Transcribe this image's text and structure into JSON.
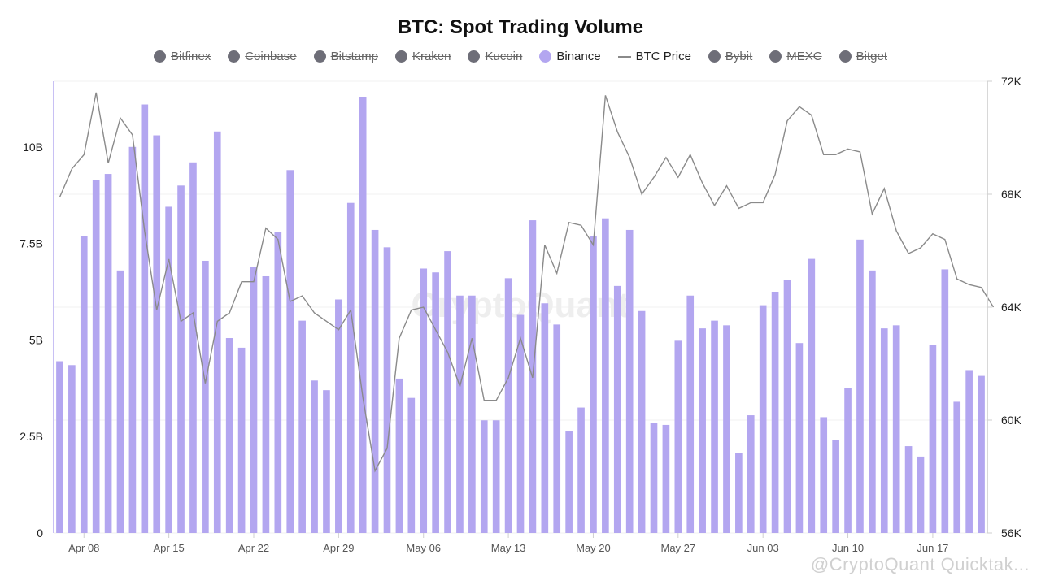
{
  "title": "BTC: Spot Trading Volume",
  "legend": [
    {
      "label": "Bitfinex",
      "active": false,
      "kind": "dot"
    },
    {
      "label": "Coinbase",
      "active": false,
      "kind": "dot"
    },
    {
      "label": "Bitstamp",
      "active": false,
      "kind": "dot"
    },
    {
      "label": "Kraken",
      "active": false,
      "kind": "dot"
    },
    {
      "label": "Kucoin",
      "active": false,
      "kind": "dot"
    },
    {
      "label": "Binance",
      "active": true,
      "kind": "dot"
    },
    {
      "label": "BTC Price",
      "active": true,
      "kind": "line"
    },
    {
      "label": "Bybit",
      "active": false,
      "kind": "dot"
    },
    {
      "label": "MEXC",
      "active": false,
      "kind": "dot"
    },
    {
      "label": "Bitget",
      "active": false,
      "kind": "dot"
    }
  ],
  "watermark": "CryptoQuant",
  "credit": "@CryptoQuant Quicktak...",
  "colors": {
    "bar": "#b3a6f0",
    "price": "#8a8a8a",
    "disabled": "#6e6e78",
    "axis": "#c8c0f4"
  },
  "chart_data": {
    "type": "bar",
    "title": "BTC: Spot Trading Volume",
    "x_tick_labels": [
      "Apr 08",
      "Apr 15",
      "Apr 22",
      "Apr 29",
      "May 06",
      "May 13",
      "May 20",
      "May 27",
      "Jun 03",
      "Jun 10",
      "Jun 17"
    ],
    "x_tick_indices": [
      2,
      9,
      16,
      23,
      30,
      37,
      44,
      51,
      58,
      65,
      72
    ],
    "y_left": {
      "ticks": [
        "0",
        "2.5B",
        "5B",
        "7.5B",
        "10B"
      ],
      "values": [
        0,
        2.5,
        5,
        7.5,
        10
      ],
      "ylim": [
        0,
        11.7
      ],
      "unit": "B"
    },
    "y_right": {
      "ticks": [
        "56K",
        "60K",
        "64K",
        "68K",
        "72K"
      ],
      "values": [
        56,
        60,
        64,
        68,
        72
      ],
      "ylim": [
        56,
        72
      ],
      "unit": "K"
    },
    "series": [
      {
        "name": "Binance",
        "type": "bar",
        "axis": "left",
        "values": [
          4.45,
          4.35,
          7.7,
          9.15,
          9.3,
          6.8,
          10.0,
          11.1,
          10.3,
          8.45,
          9.0,
          9.6,
          7.05,
          10.4,
          5.05,
          4.8,
          6.9,
          6.65,
          7.8,
          9.4,
          5.5,
          3.95,
          3.7,
          6.05,
          8.55,
          11.3,
          7.85,
          7.4,
          4.0,
          3.5,
          6.85,
          6.75,
          7.3,
          6.15,
          6.15,
          2.92,
          2.92,
          6.6,
          5.65,
          8.1,
          5.95,
          5.4,
          2.63,
          3.25,
          7.7,
          8.15,
          6.4,
          7.85,
          5.75,
          2.85,
          2.8,
          4.98,
          6.15,
          5.3,
          5.5,
          5.38,
          2.08,
          3.05,
          5.9,
          6.25,
          6.55,
          4.92,
          7.1,
          3.0,
          2.42,
          3.75,
          7.6,
          6.8,
          5.3,
          5.38,
          2.25,
          1.98,
          4.88,
          6.83,
          3.4,
          4.22,
          4.07
        ]
      },
      {
        "name": "BTC Price",
        "type": "line",
        "axis": "right",
        "values": [
          67.9,
          68.9,
          69.4,
          71.6,
          69.1,
          70.7,
          70.1,
          66.7,
          63.9,
          65.7,
          63.5,
          63.8,
          61.3,
          63.5,
          63.8,
          64.9,
          64.9,
          66.8,
          66.4,
          64.2,
          64.4,
          63.8,
          63.5,
          63.2,
          63.9,
          60.8,
          58.2,
          59.0,
          62.9,
          63.9,
          64.0,
          63.2,
          62.4,
          61.2,
          62.9,
          60.7,
          60.7,
          61.5,
          62.9,
          61.5,
          66.2,
          65.2,
          67.0,
          66.9,
          66.2,
          71.5,
          70.2,
          69.3,
          68.0,
          68.6,
          69.3,
          68.6,
          69.4,
          68.4,
          67.6,
          68.3,
          67.5,
          67.7,
          67.7,
          68.7,
          70.6,
          71.1,
          70.8,
          69.4,
          69.4,
          69.6,
          69.5,
          67.3,
          68.2,
          66.7,
          65.9,
          66.1,
          66.6,
          66.4,
          65.0,
          64.8,
          64.7,
          64.0
        ]
      }
    ],
    "grid": true,
    "legend_position": "top"
  }
}
